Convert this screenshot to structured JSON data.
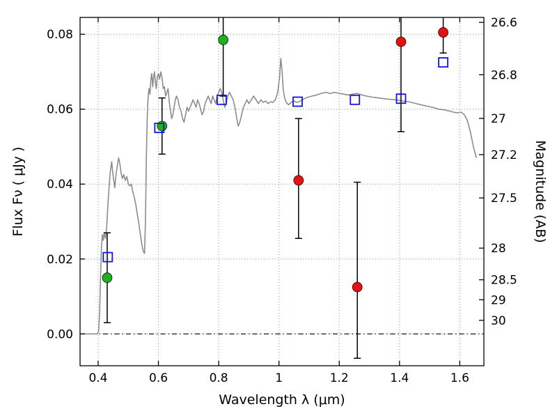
{
  "chart_data": {
    "type": "line",
    "title": "",
    "xlabel": "Wavelength  λ (μm)",
    "ylabel_left": "Flux  Fν  ( μJy )",
    "ylabel_right": "Magnitude (AB)",
    "xlim": [
      0.34,
      1.68
    ],
    "ylim": [
      -0.0085,
      0.0845
    ],
    "ab_zeropoint": 23.9,
    "grid": true,
    "zero_flux_line": true,
    "colors": {
      "grid": "#6faa6f",
      "frame": "#000000",
      "zero_line": "#000000",
      "spectrum": "#8c8c8c",
      "green_marker": "#1faf1f",
      "red_marker": "#e51212",
      "blue_marker": "#1414e0",
      "error_bar": "#000000"
    },
    "x_ticks": [
      {
        "v": 0.4,
        "label": "0.4"
      },
      {
        "v": 0.6,
        "label": "0.6"
      },
      {
        "v": 0.8,
        "label": "0.8"
      },
      {
        "v": 1.0,
        "label": "1"
      },
      {
        "v": 1.2,
        "label": "1.2"
      },
      {
        "v": 1.4,
        "label": "1.4"
      },
      {
        "v": 1.6,
        "label": "1.6"
      }
    ],
    "y_ticks_left": [
      {
        "v": 0.0,
        "label": "0.00"
      },
      {
        "v": 0.02,
        "label": "0.02"
      },
      {
        "v": 0.04,
        "label": "0.04"
      },
      {
        "v": 0.06,
        "label": "0.06"
      },
      {
        "v": 0.08,
        "label": "0.08"
      }
    ],
    "y_ticks_right_mag": [
      {
        "mag": 26.6,
        "label": "26.6"
      },
      {
        "mag": 26.8,
        "label": "26.8"
      },
      {
        "mag": 27.0,
        "label": "27"
      },
      {
        "mag": 27.2,
        "label": "27.2"
      },
      {
        "mag": 27.5,
        "label": "27.5"
      },
      {
        "mag": 28.0,
        "label": "28"
      },
      {
        "mag": 28.5,
        "label": "28.5"
      },
      {
        "mag": 29.0,
        "label": "29"
      },
      {
        "mag": 30.0,
        "label": "30"
      }
    ],
    "spectrum": {
      "key": "model-spectrum",
      "points": [
        [
          0.355,
          0.0
        ],
        [
          0.37,
          0.0
        ],
        [
          0.385,
          0.0
        ],
        [
          0.398,
          0.0
        ],
        [
          0.402,
          0.001
        ],
        [
          0.405,
          0.006
        ],
        [
          0.408,
          0.015
        ],
        [
          0.411,
          0.023
        ],
        [
          0.414,
          0.0265
        ],
        [
          0.417,
          0.025
        ],
        [
          0.42,
          0.027
        ],
        [
          0.424,
          0.0255
        ],
        [
          0.428,
          0.028
        ],
        [
          0.432,
          0.034
        ],
        [
          0.436,
          0.039
        ],
        [
          0.44,
          0.043
        ],
        [
          0.445,
          0.046
        ],
        [
          0.45,
          0.042
        ],
        [
          0.455,
          0.039
        ],
        [
          0.46,
          0.043
        ],
        [
          0.464,
          0.045
        ],
        [
          0.468,
          0.047
        ],
        [
          0.472,
          0.0455
        ],
        [
          0.476,
          0.043
        ],
        [
          0.48,
          0.0415
        ],
        [
          0.485,
          0.0425
        ],
        [
          0.49,
          0.041
        ],
        [
          0.495,
          0.042
        ],
        [
          0.5,
          0.04
        ],
        [
          0.505,
          0.0395
        ],
        [
          0.51,
          0.04
        ],
        [
          0.515,
          0.038
        ],
        [
          0.52,
          0.0365
        ],
        [
          0.525,
          0.0345
        ],
        [
          0.53,
          0.032
        ],
        [
          0.535,
          0.0295
        ],
        [
          0.54,
          0.0265
        ],
        [
          0.545,
          0.024
        ],
        [
          0.55,
          0.022
        ],
        [
          0.554,
          0.0215
        ],
        [
          0.557,
          0.03
        ],
        [
          0.56,
          0.047
        ],
        [
          0.563,
          0.058
        ],
        [
          0.566,
          0.0635
        ],
        [
          0.569,
          0.0655
        ],
        [
          0.572,
          0.064
        ],
        [
          0.575,
          0.068
        ],
        [
          0.578,
          0.0695
        ],
        [
          0.581,
          0.066
        ],
        [
          0.584,
          0.0685
        ],
        [
          0.587,
          0.07
        ],
        [
          0.59,
          0.067
        ],
        [
          0.593,
          0.0655
        ],
        [
          0.596,
          0.0685
        ],
        [
          0.6,
          0.0695
        ],
        [
          0.604,
          0.068
        ],
        [
          0.608,
          0.07
        ],
        [
          0.612,
          0.0685
        ],
        [
          0.616,
          0.0655
        ],
        [
          0.62,
          0.066
        ],
        [
          0.624,
          0.0635
        ],
        [
          0.628,
          0.0645
        ],
        [
          0.632,
          0.0655
        ],
        [
          0.636,
          0.062
        ],
        [
          0.64,
          0.0595
        ],
        [
          0.644,
          0.0575
        ],
        [
          0.648,
          0.0585
        ],
        [
          0.652,
          0.0605
        ],
        [
          0.656,
          0.0625
        ],
        [
          0.66,
          0.0635
        ],
        [
          0.665,
          0.0625
        ],
        [
          0.67,
          0.0605
        ],
        [
          0.675,
          0.0595
        ],
        [
          0.68,
          0.0575
        ],
        [
          0.685,
          0.0565
        ],
        [
          0.69,
          0.0585
        ],
        [
          0.695,
          0.0605
        ],
        [
          0.7,
          0.0595
        ],
        [
          0.705,
          0.0605
        ],
        [
          0.71,
          0.0615
        ],
        [
          0.715,
          0.0625
        ],
        [
          0.72,
          0.0615
        ],
        [
          0.725,
          0.0605
        ],
        [
          0.73,
          0.0625
        ],
        [
          0.735,
          0.0615
        ],
        [
          0.74,
          0.06
        ],
        [
          0.745,
          0.0585
        ],
        [
          0.75,
          0.0595
        ],
        [
          0.755,
          0.0615
        ],
        [
          0.76,
          0.0625
        ],
        [
          0.765,
          0.0635
        ],
        [
          0.77,
          0.0625
        ],
        [
          0.775,
          0.0615
        ],
        [
          0.78,
          0.0635
        ],
        [
          0.785,
          0.0625
        ],
        [
          0.79,
          0.0615
        ],
        [
          0.795,
          0.0635
        ],
        [
          0.8,
          0.0645
        ],
        [
          0.805,
          0.0655
        ],
        [
          0.81,
          0.0645
        ],
        [
          0.815,
          0.0625
        ],
        [
          0.82,
          0.0605
        ],
        [
          0.825,
          0.0615
        ],
        [
          0.83,
          0.0635
        ],
        [
          0.836,
          0.0645
        ],
        [
          0.842,
          0.0635
        ],
        [
          0.848,
          0.0625
        ],
        [
          0.854,
          0.0605
        ],
        [
          0.86,
          0.0575
        ],
        [
          0.865,
          0.0555
        ],
        [
          0.87,
          0.0565
        ],
        [
          0.876,
          0.0585
        ],
        [
          0.882,
          0.0605
        ],
        [
          0.888,
          0.0615
        ],
        [
          0.894,
          0.0625
        ],
        [
          0.9,
          0.0615
        ],
        [
          0.908,
          0.0625
        ],
        [
          0.916,
          0.0635
        ],
        [
          0.924,
          0.0625
        ],
        [
          0.932,
          0.0615
        ],
        [
          0.94,
          0.0625
        ],
        [
          0.948,
          0.0618
        ],
        [
          0.956,
          0.0622
        ],
        [
          0.964,
          0.0615
        ],
        [
          0.972,
          0.062
        ],
        [
          0.98,
          0.0618
        ],
        [
          0.988,
          0.0625
        ],
        [
          0.996,
          0.0645
        ],
        [
          1.002,
          0.0685
        ],
        [
          1.006,
          0.0735
        ],
        [
          1.01,
          0.0705
        ],
        [
          1.014,
          0.0655
        ],
        [
          1.018,
          0.0632
        ],
        [
          1.024,
          0.0618
        ],
        [
          1.032,
          0.0612
        ],
        [
          1.04,
          0.0618
        ],
        [
          1.05,
          0.0622
        ],
        [
          1.06,
          0.0618
        ],
        [
          1.072,
          0.0622
        ],
        [
          1.084,
          0.0628
        ],
        [
          1.096,
          0.0632
        ],
        [
          1.11,
          0.0635
        ],
        [
          1.125,
          0.0638
        ],
        [
          1.14,
          0.0642
        ],
        [
          1.155,
          0.0645
        ],
        [
          1.17,
          0.0642
        ],
        [
          1.185,
          0.0645
        ],
        [
          1.2,
          0.0642
        ],
        [
          1.215,
          0.064
        ],
        [
          1.23,
          0.0638
        ],
        [
          1.245,
          0.064
        ],
        [
          1.26,
          0.0642
        ],
        [
          1.275,
          0.0638
        ],
        [
          1.29,
          0.0635
        ],
        [
          1.31,
          0.0632
        ],
        [
          1.33,
          0.063
        ],
        [
          1.35,
          0.0628
        ],
        [
          1.37,
          0.0626
        ],
        [
          1.39,
          0.0625
        ],
        [
          1.41,
          0.0622
        ],
        [
          1.43,
          0.062
        ],
        [
          1.45,
          0.0616
        ],
        [
          1.47,
          0.0612
        ],
        [
          1.49,
          0.0608
        ],
        [
          1.51,
          0.0605
        ],
        [
          1.53,
          0.06
        ],
        [
          1.55,
          0.0598
        ],
        [
          1.57,
          0.0594
        ],
        [
          1.59,
          0.059
        ],
        [
          1.605,
          0.0592
        ],
        [
          1.615,
          0.0585
        ],
        [
          1.625,
          0.057
        ],
        [
          1.635,
          0.054
        ],
        [
          1.645,
          0.05
        ],
        [
          1.655,
          0.047
        ]
      ]
    },
    "series": [
      {
        "key": "green-circles",
        "marker": "circle",
        "color_ref": "green_marker",
        "points": [
          {
            "x": 0.43,
            "y": 0.015,
            "err_lo": 0.012,
            "err_hi": 0.012
          },
          {
            "x": 0.612,
            "y": 0.0555,
            "err_lo": 0.0075,
            "err_hi": 0.0075
          },
          {
            "x": 0.815,
            "y": 0.0785,
            "err_lo": 0.015,
            "err_hi": 0.017
          }
        ]
      },
      {
        "key": "red-circles",
        "marker": "circle",
        "color_ref": "red_marker",
        "points": [
          {
            "x": 1.065,
            "y": 0.041,
            "err_lo": 0.0155,
            "err_hi": 0.0165
          },
          {
            "x": 1.26,
            "y": 0.0125,
            "err_lo": 0.019,
            "err_hi": 0.028
          },
          {
            "x": 1.405,
            "y": 0.078,
            "err_lo": 0.024,
            "err_hi": 0.02
          },
          {
            "x": 1.545,
            "y": 0.0805,
            "err_lo": 0.0055,
            "err_hi": 0.007
          }
        ]
      },
      {
        "key": "blue-open-squares",
        "marker": "open-square",
        "color_ref": "blue_marker",
        "points": [
          {
            "x": 0.432,
            "y": 0.0205
          },
          {
            "x": 0.603,
            "y": 0.055
          },
          {
            "x": 0.81,
            "y": 0.0625
          },
          {
            "x": 1.062,
            "y": 0.062
          },
          {
            "x": 1.252,
            "y": 0.0625
          },
          {
            "x": 1.405,
            "y": 0.0628
          },
          {
            "x": 1.545,
            "y": 0.0725
          }
        ]
      }
    ]
  }
}
